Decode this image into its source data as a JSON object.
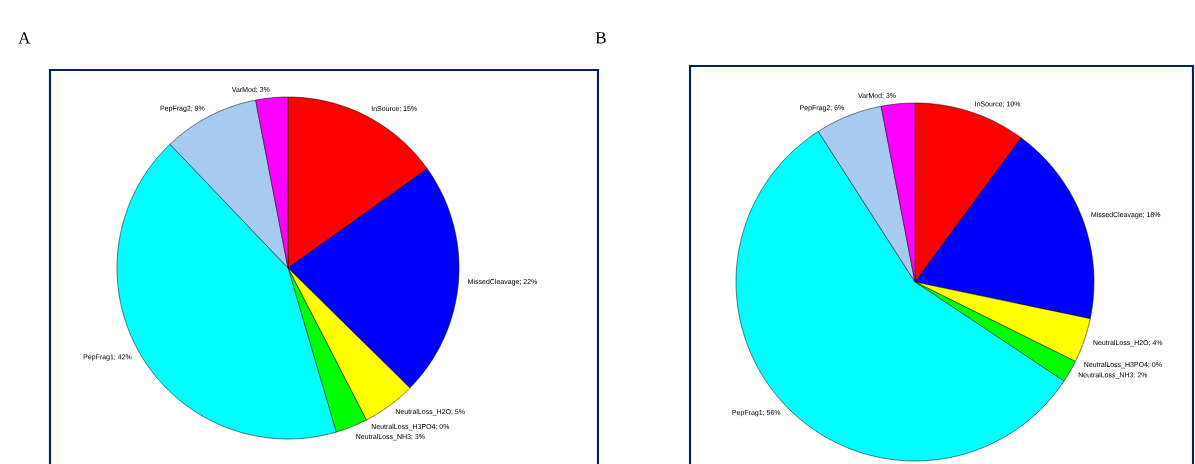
{
  "chart_data": [
    {
      "type": "pie",
      "title": "A",
      "categories": [
        "InSource; 15%",
        "MissedCleavage; 22%",
        "NeutralLoss_H2O; 5%",
        "NeutralLoss_H3PO4; 0%",
        "NeutralLoss_NH3; 3%",
        "PepFrag1; 42%",
        "PepFrag2; 9%",
        "VarMod; 3%"
      ],
      "values": [
        15,
        22,
        5,
        0,
        3,
        42,
        9,
        3
      ],
      "colors": [
        "#ff0000",
        "#0000ff",
        "#ffff00",
        "#000000",
        "#00ff00",
        "#00ffff",
        "#a6caf0",
        "#ff00ff"
      ]
    },
    {
      "type": "pie",
      "title": "B",
      "categories": [
        "InSource; 10%",
        "MissedCleavage; 18%",
        "NeutralLoss_H2O; 4%",
        "NeutralLoss_H3PO4; 0%",
        "NeutralLoss_NH3; 2%",
        "PepFrag1; 56%",
        "PepFrag2; 6%",
        "VarMod; 3%"
      ],
      "values": [
        10,
        18,
        4,
        0,
        2,
        56,
        6,
        3
      ],
      "colors": [
        "#ff0000",
        "#0000ff",
        "#ffff00",
        "#000000",
        "#00ff00",
        "#00ffff",
        "#a6caf0",
        "#ff00ff"
      ]
    }
  ]
}
